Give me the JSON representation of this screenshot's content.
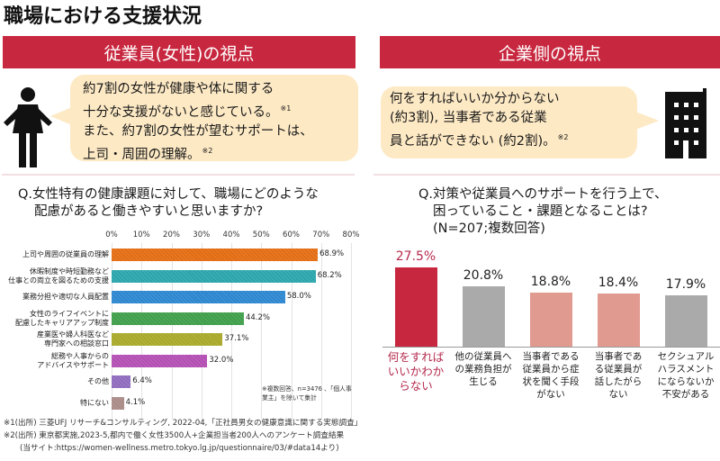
{
  "title": "職場における支援状況",
  "left_panel": {
    "header": "従業員(女性)の視点",
    "bubble_lines": [
      "約7割の女性が健康や体に関する",
      "十分な支援がないと感じている。",
      "また、約7割の女性が望むサポートは、",
      "上司・周囲の理解。"
    ],
    "bubble_refs": [
      "※1",
      "※2"
    ],
    "icon": "woman-person-icon",
    "question_line1": "Q.女性特有の健康課題に対して、職場にどのような",
    "question_line2": "配慮があると働きやすいと思いますか?",
    "note": "※複数回答、n=3476 、「個人事業主」を除いて集計"
  },
  "right_panel": {
    "header": "企業側の視点",
    "bubble_lines": [
      "何をすればいいか分からない",
      "(約3割), 当事者である従業",
      "員と話ができない (約2割)。"
    ],
    "bubble_ref": "※2",
    "icon": "office-building-icon",
    "question_line1": "Q.対策や従業員へのサポートを行う上で、",
    "question_line2": "困っていること・課題となることは?",
    "question_line3": "(N=207;複数回答)"
  },
  "chart_data": [
    {
      "type": "bar",
      "orientation": "horizontal",
      "title": "Q.女性特有の健康課題に対して、職場にどのような配慮があると働きやすいと思いますか?",
      "xlim": [
        0,
        80
      ],
      "xticks": [
        "0%",
        "10%",
        "20%",
        "30%",
        "40%",
        "50%",
        "60%",
        "70%",
        "80%"
      ],
      "grid": true,
      "categories": [
        [
          "上司や周囲の従業員の理解"
        ],
        [
          "休暇制度や時短勤務など",
          "仕事との両立を図るための支援"
        ],
        [
          "業務分担や適切な人員配置"
        ],
        [
          "女性のライフイベントに",
          "配慮したキャリアアップ制度"
        ],
        [
          "産業医や婦人科医など",
          "専門家への相談窓口"
        ],
        [
          "総務や人事からの",
          "アドバイスやサポート"
        ],
        [
          "その他"
        ],
        [
          "特にない"
        ]
      ],
      "values": [
        68.9,
        68.2,
        58.0,
        44.2,
        37.1,
        32.0,
        6.4,
        4.1
      ],
      "value_labels": [
        "68.9%",
        "68.2%",
        "58.0%",
        "44.2%",
        "37.1%",
        "32.0%",
        "6.4%",
        "4.1%"
      ],
      "colors": [
        "#e36c12",
        "#2aa5ab",
        "#2c86cf",
        "#3f9e4a",
        "#a8a82a",
        "#b34eb3",
        "#8e6bbd",
        "#a98a86"
      ],
      "note": "※複数回答、n=3476 、「個人事業主」を除いて集計"
    },
    {
      "type": "bar",
      "orientation": "vertical",
      "title": "Q.対策や従業員へのサポートを行う上で、困っていること・課題となることは?(N=207;複数回答)",
      "ylim": [
        0,
        30
      ],
      "grid": false,
      "categories": [
        [
          "何をすれば",
          "いいかわか",
          "らない"
        ],
        [
          "他の従業員へ",
          "の業務負担が",
          "生じる"
        ],
        [
          "当事者である",
          "従業員から症",
          "状を聞く手段",
          "がない"
        ],
        [
          "当事者であ",
          "る従業員が",
          "話したがら",
          "ない"
        ],
        [
          "セクシュアル",
          "ハラスメント",
          "にならないか",
          "不安がある"
        ]
      ],
      "values": [
        27.5,
        20.8,
        18.8,
        18.4,
        17.9
      ],
      "value_labels": [
        "27.5%",
        "20.8%",
        "18.8%",
        "18.4%",
        "17.9%"
      ],
      "colors": [
        "#c8283f",
        "#aaaaaa",
        "#e09a90",
        "#e09a90",
        "#aaaaaa"
      ],
      "highlight_color": "#b52a4d"
    }
  ],
  "footnotes": [
    "※1(出所) 三菱UFJ リサーチ&コンサルティング, 2022-04,「正社員男女の健康意識に関する実態調査」",
    "※2(出所) 東京都実施,2023-5,都内で働く女性3500人+企業担当者200人へのアンケート調査結果",
    "(当サイト:https://women-wellness.metro.tokyo.lg.jp/questionnaire/03/#data14より)"
  ]
}
